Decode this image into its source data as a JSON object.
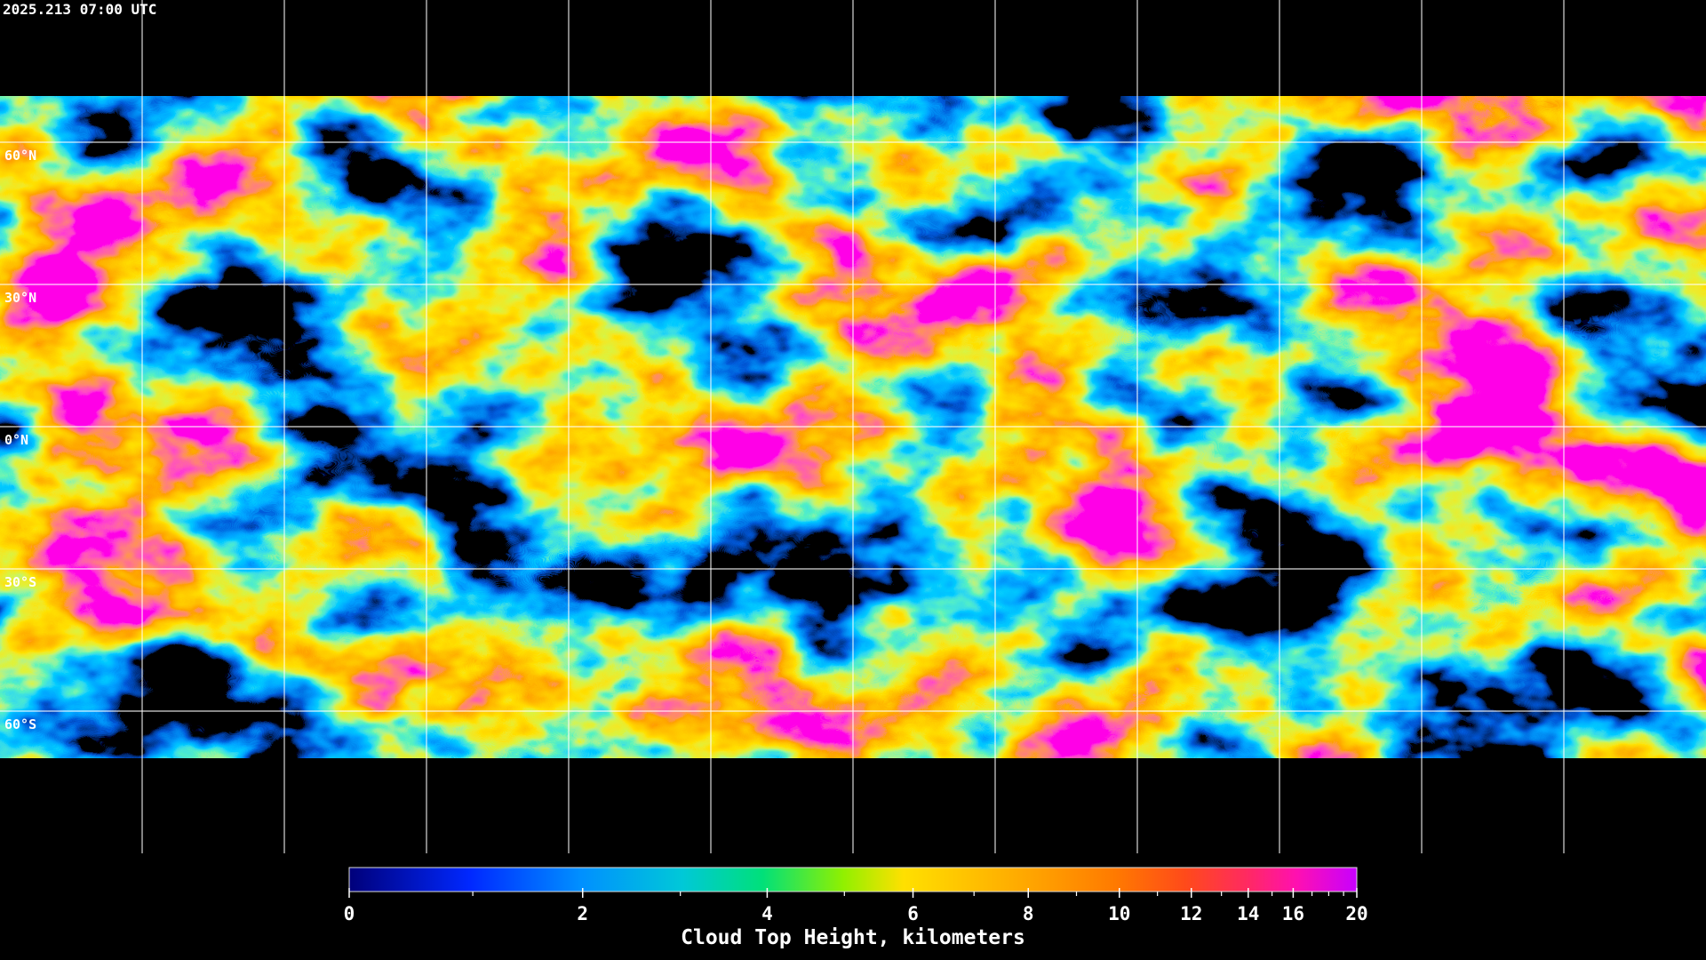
{
  "header": {
    "timestamp": "2025.213 07:00 UTC"
  },
  "map": {
    "latitude_labels": [
      "60°N",
      "30°N",
      "0°N",
      "30°S",
      "60°S"
    ]
  },
  "colorbar": {
    "title": "Cloud Top Height, kilometers",
    "range": [
      0,
      20
    ],
    "ticks": [
      0,
      2,
      4,
      6,
      8,
      10,
      12,
      14,
      16,
      20
    ],
    "minor_ticks": [
      1,
      3,
      5,
      7,
      9,
      11,
      13,
      15,
      17,
      18,
      19
    ]
  }
}
